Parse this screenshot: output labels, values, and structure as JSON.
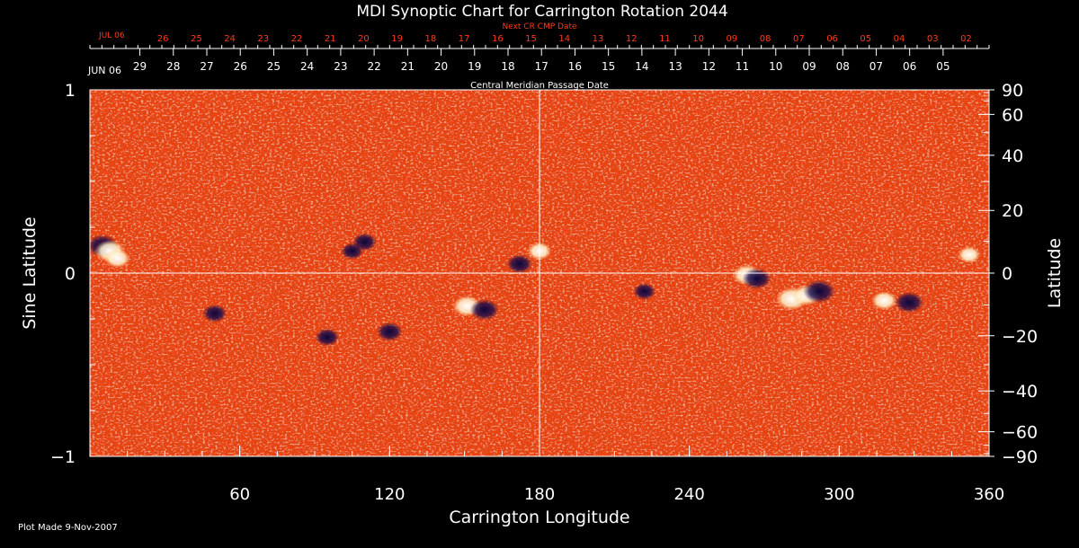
{
  "colors": {
    "background": "#000000",
    "foreground": "#ffffff",
    "next_cr_axis": "#ff3a1a",
    "map_base": "#e8430a"
  },
  "chart_data": {
    "type": "heatmap",
    "title": "MDI Synoptic Chart for Carrington Rotation 2044",
    "xlabel": "Carrington Longitude",
    "ylabel_left": "Sine Latitude",
    "ylabel_right": "Latitude",
    "footer": "Plot Made  9-Nov-2007",
    "xlim": [
      0,
      360
    ],
    "ylim": [
      -1,
      1
    ],
    "x_ticks": [
      60,
      120,
      180,
      240,
      300,
      360
    ],
    "x_minor_step": 15,
    "y_ticks_left": [
      {
        "v": 1,
        "label": "1"
      },
      {
        "v": 0,
        "label": "0"
      },
      {
        "v": -1,
        "label": "−1"
      }
    ],
    "y_minor_left": [
      0.75,
      0.5,
      0.25,
      -0.25,
      -0.5,
      -0.75
    ],
    "y_ticks_right_latitude": [
      {
        "lat": 90,
        "label": "90"
      },
      {
        "lat": 60,
        "label": "60"
      },
      {
        "lat": 40,
        "label": "40"
      },
      {
        "lat": 20,
        "label": "20"
      },
      {
        "lat": 0,
        "label": "0"
      },
      {
        "lat": -20,
        "label": "−20"
      },
      {
        "lat": -40,
        "label": "−40"
      },
      {
        "lat": -60,
        "label": "−60"
      },
      {
        "lat": -90,
        "label": "−90"
      }
    ],
    "y_minor_right_latitude": [
      80,
      70,
      50,
      30,
      10,
      -10,
      -30,
      -50,
      -70,
      -80
    ],
    "reference_lines": {
      "horizontal_sine_lat": 0,
      "vertical_longitude": 180
    },
    "cmp_axis": {
      "label": "Central Meridian Passage Date",
      "start_label": "JUN 06",
      "dates": [
        {
          "lon": 20,
          "label": "29"
        },
        {
          "lon": 33.4,
          "label": "28"
        },
        {
          "lon": 46.8,
          "label": "27"
        },
        {
          "lon": 60.2,
          "label": "26"
        },
        {
          "lon": 73.6,
          "label": "25"
        },
        {
          "lon": 87,
          "label": "24"
        },
        {
          "lon": 100.4,
          "label": "23"
        },
        {
          "lon": 113.8,
          "label": "22"
        },
        {
          "lon": 127.2,
          "label": "21"
        },
        {
          "lon": 140.6,
          "label": "20"
        },
        {
          "lon": 154,
          "label": "19"
        },
        {
          "lon": 167.4,
          "label": "18"
        },
        {
          "lon": 180.8,
          "label": "17"
        },
        {
          "lon": 194.2,
          "label": "16"
        },
        {
          "lon": 207.6,
          "label": "15"
        },
        {
          "lon": 221,
          "label": "14"
        },
        {
          "lon": 234.4,
          "label": "13"
        },
        {
          "lon": 247.8,
          "label": "12"
        },
        {
          "lon": 261.2,
          "label": "11"
        },
        {
          "lon": 274.6,
          "label": "10"
        },
        {
          "lon": 288,
          "label": "09"
        },
        {
          "lon": 301.4,
          "label": "08"
        },
        {
          "lon": 314.8,
          "label": "07"
        },
        {
          "lon": 328.2,
          "label": "06"
        },
        {
          "lon": 341.6,
          "label": "05"
        }
      ]
    },
    "next_cr_axis": {
      "label": "Next CR CMP Date",
      "start_label": "JUL 06",
      "dates": [
        {
          "lon": 29.2,
          "label": "26"
        },
        {
          "lon": 42.6,
          "label": "25"
        },
        {
          "lon": 56,
          "label": "24"
        },
        {
          "lon": 69.4,
          "label": "23"
        },
        {
          "lon": 82.8,
          "label": "22"
        },
        {
          "lon": 96.2,
          "label": "21"
        },
        {
          "lon": 109.6,
          "label": "20"
        },
        {
          "lon": 123,
          "label": "19"
        },
        {
          "lon": 136.4,
          "label": "18"
        },
        {
          "lon": 149.8,
          "label": "17"
        },
        {
          "lon": 163.2,
          "label": "16"
        },
        {
          "lon": 176.6,
          "label": "15"
        },
        {
          "lon": 190,
          "label": "14"
        },
        {
          "lon": 203.4,
          "label": "13"
        },
        {
          "lon": 216.8,
          "label": "12"
        },
        {
          "lon": 230.2,
          "label": "11"
        },
        {
          "lon": 243.6,
          "label": "10"
        },
        {
          "lon": 257,
          "label": "09"
        },
        {
          "lon": 270.4,
          "label": "08"
        },
        {
          "lon": 283.8,
          "label": "07"
        },
        {
          "lon": 297.2,
          "label": "06"
        },
        {
          "lon": 310.6,
          "label": "05"
        },
        {
          "lon": 324,
          "label": "04"
        },
        {
          "lon": 337.4,
          "label": "03"
        },
        {
          "lon": 350.8,
          "label": "02"
        }
      ]
    },
    "active_regions": [
      {
        "lon": 5,
        "sinlat": 0.15,
        "polarity": "negative",
        "strength": 0.9
      },
      {
        "lon": 8,
        "sinlat": 0.12,
        "polarity": "positive",
        "strength": 0.9
      },
      {
        "lon": 11,
        "sinlat": 0.08,
        "polarity": "positive",
        "strength": 0.6
      },
      {
        "lon": 110,
        "sinlat": 0.17,
        "polarity": "negative",
        "strength": 0.5
      },
      {
        "lon": 105,
        "sinlat": 0.12,
        "polarity": "negative",
        "strength": 0.4
      },
      {
        "lon": 172,
        "sinlat": 0.05,
        "polarity": "negative",
        "strength": 0.6
      },
      {
        "lon": 180,
        "sinlat": 0.12,
        "polarity": "positive",
        "strength": 0.5
      },
      {
        "lon": 151,
        "sinlat": -0.18,
        "polarity": "positive",
        "strength": 0.8
      },
      {
        "lon": 158,
        "sinlat": -0.2,
        "polarity": "negative",
        "strength": 0.8
      },
      {
        "lon": 120,
        "sinlat": -0.32,
        "polarity": "negative",
        "strength": 0.6
      },
      {
        "lon": 95,
        "sinlat": -0.35,
        "polarity": "negative",
        "strength": 0.5
      },
      {
        "lon": 50,
        "sinlat": -0.22,
        "polarity": "negative",
        "strength": 0.5
      },
      {
        "lon": 222,
        "sinlat": -0.1,
        "polarity": "negative",
        "strength": 0.4
      },
      {
        "lon": 263,
        "sinlat": -0.01,
        "polarity": "positive",
        "strength": 0.8
      },
      {
        "lon": 267,
        "sinlat": -0.03,
        "polarity": "negative",
        "strength": 0.8
      },
      {
        "lon": 281,
        "sinlat": -0.14,
        "polarity": "positive",
        "strength": 1.0
      },
      {
        "lon": 287,
        "sinlat": -0.12,
        "polarity": "positive",
        "strength": 0.8
      },
      {
        "lon": 292,
        "sinlat": -0.1,
        "polarity": "negative",
        "strength": 1.0
      },
      {
        "lon": 318,
        "sinlat": -0.15,
        "polarity": "positive",
        "strength": 0.6
      },
      {
        "lon": 328,
        "sinlat": -0.16,
        "polarity": "negative",
        "strength": 0.8
      },
      {
        "lon": 352,
        "sinlat": 0.1,
        "polarity": "positive",
        "strength": 0.4
      }
    ]
  }
}
